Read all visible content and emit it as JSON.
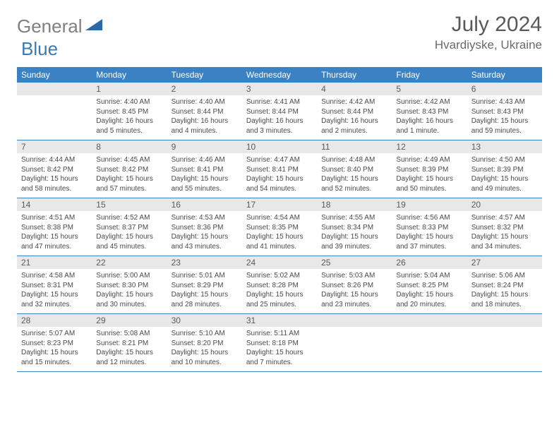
{
  "logo": {
    "general": "General",
    "blue": "Blue"
  },
  "title": "July 2024",
  "location": "Hvardiyske, Ukraine",
  "dayNames": [
    "Sunday",
    "Monday",
    "Tuesday",
    "Wednesday",
    "Thursday",
    "Friday",
    "Saturday"
  ],
  "colors": {
    "headerBg": "#3a82c4",
    "headerText": "#ffffff",
    "dayNumBg": "#e8e8e8",
    "bodyText": "#4a4a4a",
    "logoGray": "#808080",
    "logoBlue": "#3a7ab8"
  },
  "weeks": [
    [
      null,
      {
        "n": "1",
        "sr": "4:40 AM",
        "ss": "8:45 PM",
        "dl": "16 hours and 5 minutes."
      },
      {
        "n": "2",
        "sr": "4:40 AM",
        "ss": "8:44 PM",
        "dl": "16 hours and 4 minutes."
      },
      {
        "n": "3",
        "sr": "4:41 AM",
        "ss": "8:44 PM",
        "dl": "16 hours and 3 minutes."
      },
      {
        "n": "4",
        "sr": "4:42 AM",
        "ss": "8:44 PM",
        "dl": "16 hours and 2 minutes."
      },
      {
        "n": "5",
        "sr": "4:42 AM",
        "ss": "8:43 PM",
        "dl": "16 hours and 1 minute."
      },
      {
        "n": "6",
        "sr": "4:43 AM",
        "ss": "8:43 PM",
        "dl": "15 hours and 59 minutes."
      }
    ],
    [
      {
        "n": "7",
        "sr": "4:44 AM",
        "ss": "8:42 PM",
        "dl": "15 hours and 58 minutes."
      },
      {
        "n": "8",
        "sr": "4:45 AM",
        "ss": "8:42 PM",
        "dl": "15 hours and 57 minutes."
      },
      {
        "n": "9",
        "sr": "4:46 AM",
        "ss": "8:41 PM",
        "dl": "15 hours and 55 minutes."
      },
      {
        "n": "10",
        "sr": "4:47 AM",
        "ss": "8:41 PM",
        "dl": "15 hours and 54 minutes."
      },
      {
        "n": "11",
        "sr": "4:48 AM",
        "ss": "8:40 PM",
        "dl": "15 hours and 52 minutes."
      },
      {
        "n": "12",
        "sr": "4:49 AM",
        "ss": "8:39 PM",
        "dl": "15 hours and 50 minutes."
      },
      {
        "n": "13",
        "sr": "4:50 AM",
        "ss": "8:39 PM",
        "dl": "15 hours and 49 minutes."
      }
    ],
    [
      {
        "n": "14",
        "sr": "4:51 AM",
        "ss": "8:38 PM",
        "dl": "15 hours and 47 minutes."
      },
      {
        "n": "15",
        "sr": "4:52 AM",
        "ss": "8:37 PM",
        "dl": "15 hours and 45 minutes."
      },
      {
        "n": "16",
        "sr": "4:53 AM",
        "ss": "8:36 PM",
        "dl": "15 hours and 43 minutes."
      },
      {
        "n": "17",
        "sr": "4:54 AM",
        "ss": "8:35 PM",
        "dl": "15 hours and 41 minutes."
      },
      {
        "n": "18",
        "sr": "4:55 AM",
        "ss": "8:34 PM",
        "dl": "15 hours and 39 minutes."
      },
      {
        "n": "19",
        "sr": "4:56 AM",
        "ss": "8:33 PM",
        "dl": "15 hours and 37 minutes."
      },
      {
        "n": "20",
        "sr": "4:57 AM",
        "ss": "8:32 PM",
        "dl": "15 hours and 34 minutes."
      }
    ],
    [
      {
        "n": "21",
        "sr": "4:58 AM",
        "ss": "8:31 PM",
        "dl": "15 hours and 32 minutes."
      },
      {
        "n": "22",
        "sr": "5:00 AM",
        "ss": "8:30 PM",
        "dl": "15 hours and 30 minutes."
      },
      {
        "n": "23",
        "sr": "5:01 AM",
        "ss": "8:29 PM",
        "dl": "15 hours and 28 minutes."
      },
      {
        "n": "24",
        "sr": "5:02 AM",
        "ss": "8:28 PM",
        "dl": "15 hours and 25 minutes."
      },
      {
        "n": "25",
        "sr": "5:03 AM",
        "ss": "8:26 PM",
        "dl": "15 hours and 23 minutes."
      },
      {
        "n": "26",
        "sr": "5:04 AM",
        "ss": "8:25 PM",
        "dl": "15 hours and 20 minutes."
      },
      {
        "n": "27",
        "sr": "5:06 AM",
        "ss": "8:24 PM",
        "dl": "15 hours and 18 minutes."
      }
    ],
    [
      {
        "n": "28",
        "sr": "5:07 AM",
        "ss": "8:23 PM",
        "dl": "15 hours and 15 minutes."
      },
      {
        "n": "29",
        "sr": "5:08 AM",
        "ss": "8:21 PM",
        "dl": "15 hours and 12 minutes."
      },
      {
        "n": "30",
        "sr": "5:10 AM",
        "ss": "8:20 PM",
        "dl": "15 hours and 10 minutes."
      },
      {
        "n": "31",
        "sr": "5:11 AM",
        "ss": "8:18 PM",
        "dl": "15 hours and 7 minutes."
      },
      null,
      null,
      null
    ]
  ],
  "labels": {
    "sunrise": "Sunrise:",
    "sunset": "Sunset:",
    "daylight": "Daylight:"
  }
}
